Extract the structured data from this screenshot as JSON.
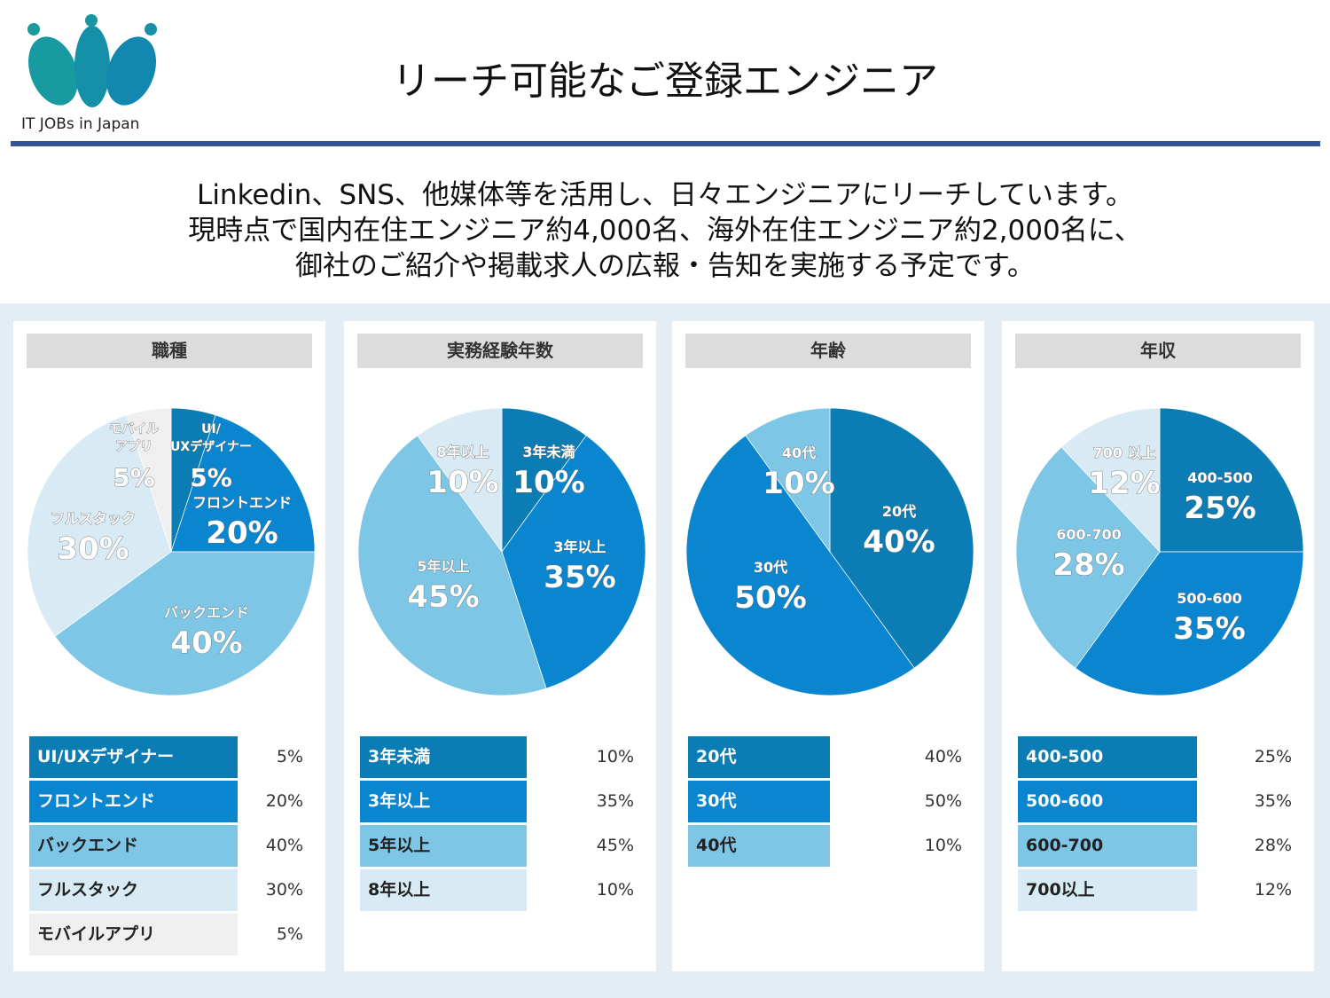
{
  "logo": {
    "text": "IT JOBs in Japan"
  },
  "title": "リーチ可能なご登録エンジニア",
  "intro": [
    "Linkedin、SNS、他媒体等を活用し、日々エンジニアにリーチしています。",
    "現時点で国内在住エンジニア約4,000名、海外在住エンジニア約2,000名に、",
    "御社のご紹介や掲載求人の広報・告知を実施する予定です。"
  ],
  "chart_data": [
    {
      "type": "pie",
      "title": "職種",
      "labels": [
        "UI/UXデザイナー",
        "フロントエンド",
        "バックエンド",
        "フルスタック",
        "モバイルアプリ"
      ],
      "pie_labels": [
        "UI/\nUXデザイナー",
        "フロントエンド",
        "バックエンド",
        "フルスタック",
        "モバイル\nアプリ"
      ],
      "values": [
        5,
        20,
        40,
        30,
        5
      ],
      "value_labels": [
        "5%",
        "20%",
        "40%",
        "30%",
        "5%"
      ],
      "colors": [
        "#0b7db4",
        "#0a86d0",
        "#7ec6e6",
        "#d8ebf4",
        "#efefef"
      ],
      "text_colors": [
        "#fff",
        "#fff",
        "#222",
        "#222",
        "#222"
      ]
    },
    {
      "type": "pie",
      "title": "実務経験年数",
      "labels": [
        "3年未満",
        "3年以上",
        "5年以上",
        "8年以上"
      ],
      "pie_labels": [
        "3年未満",
        "3年以上",
        "5年以上",
        "8年以上"
      ],
      "values": [
        10,
        35,
        45,
        10
      ],
      "value_labels": [
        "10%",
        "35%",
        "45%",
        "10%"
      ],
      "colors": [
        "#0b7db4",
        "#0a86d0",
        "#7ec6e6",
        "#d8ebf4"
      ],
      "text_colors": [
        "#fff",
        "#fff",
        "#222",
        "#222"
      ]
    },
    {
      "type": "pie",
      "title": "年齢",
      "labels": [
        "20代",
        "30代",
        "40代"
      ],
      "pie_labels": [
        "20代",
        "30代",
        "40代"
      ],
      "values": [
        40,
        50,
        10
      ],
      "value_labels": [
        "40%",
        "50%",
        "10%"
      ],
      "colors": [
        "#0b7db4",
        "#0a86d0",
        "#7ec6e6"
      ],
      "text_colors": [
        "#fff",
        "#fff",
        "#222"
      ]
    },
    {
      "type": "pie",
      "title": "年収",
      "labels": [
        "400-500",
        "500-600",
        "600-700",
        "700以上"
      ],
      "pie_labels": [
        "400-500",
        "500-600",
        "600-700",
        "700 以上"
      ],
      "values": [
        25,
        35,
        28,
        12
      ],
      "value_labels": [
        "25%",
        "35%",
        "28%",
        "12%"
      ],
      "colors": [
        "#0b7db4",
        "#0a86d0",
        "#7ec6e6",
        "#d8ebf4"
      ],
      "text_colors": [
        "#fff",
        "#fff",
        "#222",
        "#222"
      ]
    }
  ]
}
